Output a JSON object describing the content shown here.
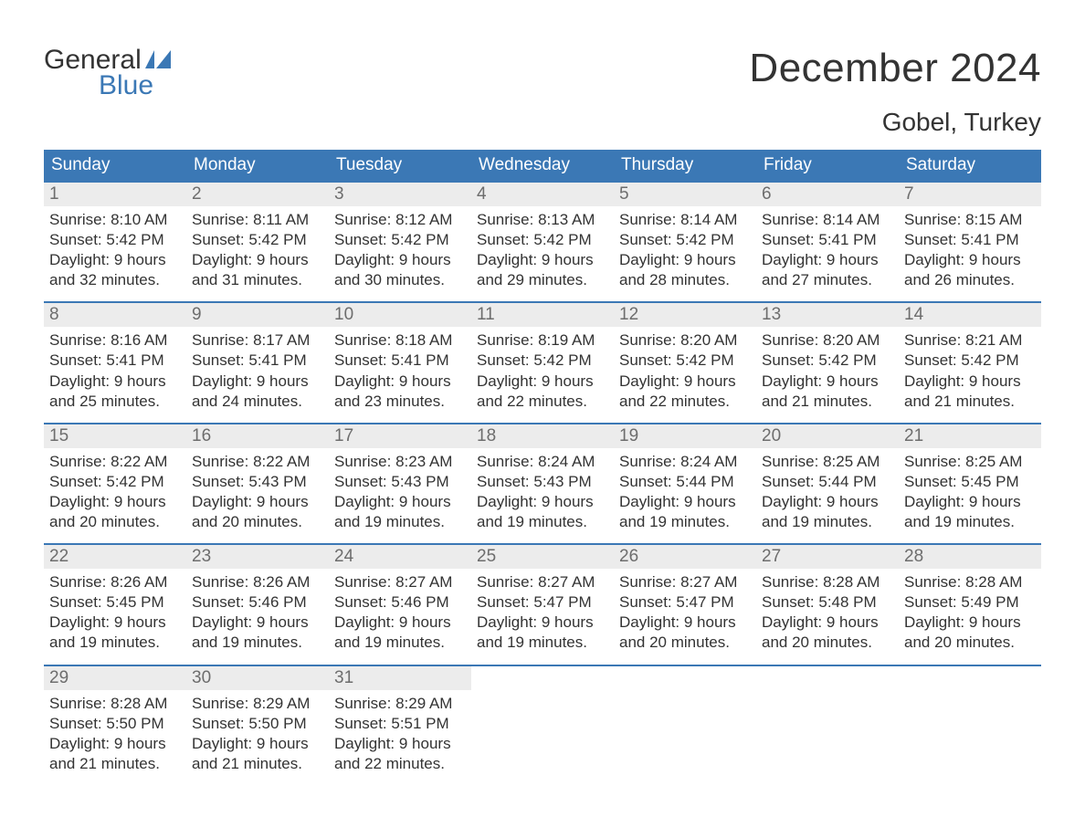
{
  "logo": {
    "word1": "General",
    "word2": "Blue"
  },
  "header": {
    "month_title": "December 2024",
    "location": "Gobel, Turkey"
  },
  "colors": {
    "header_bg": "#3b78b5",
    "header_text": "#ffffff",
    "daynum_bg": "#ececec",
    "daynum_text": "#6d6d6d",
    "body_text": "#333333",
    "logo_blue": "#3b78b5",
    "week_border": "#3b78b5"
  },
  "day_headers": [
    "Sunday",
    "Monday",
    "Tuesday",
    "Wednesday",
    "Thursday",
    "Friday",
    "Saturday"
  ],
  "weeks": [
    [
      {
        "num": "1",
        "sunrise": "Sunrise: 8:10 AM",
        "sunset": "Sunset: 5:42 PM",
        "dl1": "Daylight: 9 hours",
        "dl2": "and 32 minutes."
      },
      {
        "num": "2",
        "sunrise": "Sunrise: 8:11 AM",
        "sunset": "Sunset: 5:42 PM",
        "dl1": "Daylight: 9 hours",
        "dl2": "and 31 minutes."
      },
      {
        "num": "3",
        "sunrise": "Sunrise: 8:12 AM",
        "sunset": "Sunset: 5:42 PM",
        "dl1": "Daylight: 9 hours",
        "dl2": "and 30 minutes."
      },
      {
        "num": "4",
        "sunrise": "Sunrise: 8:13 AM",
        "sunset": "Sunset: 5:42 PM",
        "dl1": "Daylight: 9 hours",
        "dl2": "and 29 minutes."
      },
      {
        "num": "5",
        "sunrise": "Sunrise: 8:14 AM",
        "sunset": "Sunset: 5:42 PM",
        "dl1": "Daylight: 9 hours",
        "dl2": "and 28 minutes."
      },
      {
        "num": "6",
        "sunrise": "Sunrise: 8:14 AM",
        "sunset": "Sunset: 5:41 PM",
        "dl1": "Daylight: 9 hours",
        "dl2": "and 27 minutes."
      },
      {
        "num": "7",
        "sunrise": "Sunrise: 8:15 AM",
        "sunset": "Sunset: 5:41 PM",
        "dl1": "Daylight: 9 hours",
        "dl2": "and 26 minutes."
      }
    ],
    [
      {
        "num": "8",
        "sunrise": "Sunrise: 8:16 AM",
        "sunset": "Sunset: 5:41 PM",
        "dl1": "Daylight: 9 hours",
        "dl2": "and 25 minutes."
      },
      {
        "num": "9",
        "sunrise": "Sunrise: 8:17 AM",
        "sunset": "Sunset: 5:41 PM",
        "dl1": "Daylight: 9 hours",
        "dl2": "and 24 minutes."
      },
      {
        "num": "10",
        "sunrise": "Sunrise: 8:18 AM",
        "sunset": "Sunset: 5:41 PM",
        "dl1": "Daylight: 9 hours",
        "dl2": "and 23 minutes."
      },
      {
        "num": "11",
        "sunrise": "Sunrise: 8:19 AM",
        "sunset": "Sunset: 5:42 PM",
        "dl1": "Daylight: 9 hours",
        "dl2": "and 22 minutes."
      },
      {
        "num": "12",
        "sunrise": "Sunrise: 8:20 AM",
        "sunset": "Sunset: 5:42 PM",
        "dl1": "Daylight: 9 hours",
        "dl2": "and 22 minutes."
      },
      {
        "num": "13",
        "sunrise": "Sunrise: 8:20 AM",
        "sunset": "Sunset: 5:42 PM",
        "dl1": "Daylight: 9 hours",
        "dl2": "and 21 minutes."
      },
      {
        "num": "14",
        "sunrise": "Sunrise: 8:21 AM",
        "sunset": "Sunset: 5:42 PM",
        "dl1": "Daylight: 9 hours",
        "dl2": "and 21 minutes."
      }
    ],
    [
      {
        "num": "15",
        "sunrise": "Sunrise: 8:22 AM",
        "sunset": "Sunset: 5:42 PM",
        "dl1": "Daylight: 9 hours",
        "dl2": "and 20 minutes."
      },
      {
        "num": "16",
        "sunrise": "Sunrise: 8:22 AM",
        "sunset": "Sunset: 5:43 PM",
        "dl1": "Daylight: 9 hours",
        "dl2": "and 20 minutes."
      },
      {
        "num": "17",
        "sunrise": "Sunrise: 8:23 AM",
        "sunset": "Sunset: 5:43 PM",
        "dl1": "Daylight: 9 hours",
        "dl2": "and 19 minutes."
      },
      {
        "num": "18",
        "sunrise": "Sunrise: 8:24 AM",
        "sunset": "Sunset: 5:43 PM",
        "dl1": "Daylight: 9 hours",
        "dl2": "and 19 minutes."
      },
      {
        "num": "19",
        "sunrise": "Sunrise: 8:24 AM",
        "sunset": "Sunset: 5:44 PM",
        "dl1": "Daylight: 9 hours",
        "dl2": "and 19 minutes."
      },
      {
        "num": "20",
        "sunrise": "Sunrise: 8:25 AM",
        "sunset": "Sunset: 5:44 PM",
        "dl1": "Daylight: 9 hours",
        "dl2": "and 19 minutes."
      },
      {
        "num": "21",
        "sunrise": "Sunrise: 8:25 AM",
        "sunset": "Sunset: 5:45 PM",
        "dl1": "Daylight: 9 hours",
        "dl2": "and 19 minutes."
      }
    ],
    [
      {
        "num": "22",
        "sunrise": "Sunrise: 8:26 AM",
        "sunset": "Sunset: 5:45 PM",
        "dl1": "Daylight: 9 hours",
        "dl2": "and 19 minutes."
      },
      {
        "num": "23",
        "sunrise": "Sunrise: 8:26 AM",
        "sunset": "Sunset: 5:46 PM",
        "dl1": "Daylight: 9 hours",
        "dl2": "and 19 minutes."
      },
      {
        "num": "24",
        "sunrise": "Sunrise: 8:27 AM",
        "sunset": "Sunset: 5:46 PM",
        "dl1": "Daylight: 9 hours",
        "dl2": "and 19 minutes."
      },
      {
        "num": "25",
        "sunrise": "Sunrise: 8:27 AM",
        "sunset": "Sunset: 5:47 PM",
        "dl1": "Daylight: 9 hours",
        "dl2": "and 19 minutes."
      },
      {
        "num": "26",
        "sunrise": "Sunrise: 8:27 AM",
        "sunset": "Sunset: 5:47 PM",
        "dl1": "Daylight: 9 hours",
        "dl2": "and 20 minutes."
      },
      {
        "num": "27",
        "sunrise": "Sunrise: 8:28 AM",
        "sunset": "Sunset: 5:48 PM",
        "dl1": "Daylight: 9 hours",
        "dl2": "and 20 minutes."
      },
      {
        "num": "28",
        "sunrise": "Sunrise: 8:28 AM",
        "sunset": "Sunset: 5:49 PM",
        "dl1": "Daylight: 9 hours",
        "dl2": "and 20 minutes."
      }
    ],
    [
      {
        "num": "29",
        "sunrise": "Sunrise: 8:28 AM",
        "sunset": "Sunset: 5:50 PM",
        "dl1": "Daylight: 9 hours",
        "dl2": "and 21 minutes."
      },
      {
        "num": "30",
        "sunrise": "Sunrise: 8:29 AM",
        "sunset": "Sunset: 5:50 PM",
        "dl1": "Daylight: 9 hours",
        "dl2": "and 21 minutes."
      },
      {
        "num": "31",
        "sunrise": "Sunrise: 8:29 AM",
        "sunset": "Sunset: 5:51 PM",
        "dl1": "Daylight: 9 hours",
        "dl2": "and 22 minutes."
      },
      {
        "empty": true
      },
      {
        "empty": true
      },
      {
        "empty": true
      },
      {
        "empty": true
      }
    ]
  ]
}
